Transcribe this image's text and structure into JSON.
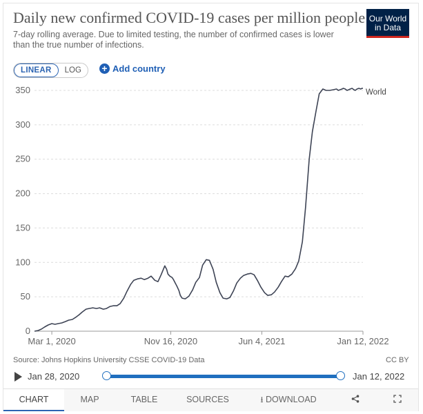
{
  "header": {
    "title": "Daily new confirmed COVID-19 cases per million people",
    "subtitle": "7-day rolling average. Due to limited testing, the number of confirmed cases is lower than the true number of infections.",
    "logo_line1": "Our World",
    "logo_line2": "in Data"
  },
  "controls": {
    "linear_label": "LINEAR",
    "log_label": "LOG",
    "add_country_label": "Add country"
  },
  "chart_data": {
    "type": "line",
    "title": "Daily new confirmed COVID-19 cases per million people",
    "xlabel": "",
    "ylabel": "",
    "ylim": [
      0,
      350
    ],
    "y_ticks": [
      0,
      50,
      100,
      150,
      200,
      250,
      300,
      350
    ],
    "y_tick_labels": [
      "0",
      "50",
      "100",
      "150",
      "200",
      "250",
      "300",
      "350"
    ],
    "x_tick_labels": [
      "Mar 1, 2020",
      "Nov 16, 2020",
      "Jun 4, 2021",
      "Jan 12, 2022"
    ],
    "x_tick_days": [
      38,
      299,
      499,
      721
    ],
    "x_range_days": [
      0,
      721
    ],
    "grid": "horizontal-dashed",
    "series": [
      {
        "name": "World",
        "color": "#3d4354",
        "x_days": [
          0,
          8,
          15,
          22,
          30,
          38,
          45,
          52,
          60,
          68,
          75,
          83,
          90,
          98,
          105,
          113,
          120,
          128,
          136,
          143,
          151,
          158,
          166,
          173,
          181,
          188,
          196,
          203,
          211,
          218,
          226,
          234,
          241,
          249,
          256,
          264,
          271,
          278,
          286,
          290,
          293,
          297,
          302,
          305,
          309,
          313,
          317,
          320,
          324,
          331,
          339,
          347,
          354,
          362,
          369,
          377,
          384,
          392,
          399,
          407,
          414,
          422,
          429,
          437,
          444,
          452,
          459,
          467,
          475,
          482,
          490,
          497,
          505,
          512,
          520,
          527,
          535,
          542,
          550,
          557,
          565,
          573,
          580,
          588,
          595,
          603,
          610,
          618,
          625,
          633,
          640,
          648,
          656,
          663,
          667,
          671,
          675,
          678,
          682,
          686,
          690,
          693,
          697,
          701,
          704,
          708,
          712,
          716,
          719,
          721
        ],
        "values": [
          0,
          1,
          3,
          6,
          9,
          11,
          10,
          11,
          12,
          14,
          16,
          17,
          20,
          24,
          28,
          32,
          33,
          34,
          33,
          34,
          32,
          33,
          36,
          37,
          37,
          40,
          48,
          58,
          68,
          74,
          76,
          77,
          75,
          77,
          80,
          74,
          72,
          82,
          95,
          90,
          83,
          80,
          78,
          75,
          70,
          65,
          59,
          52,
          48,
          47,
          51,
          60,
          71,
          78,
          96,
          104,
          103,
          90,
          71,
          56,
          48,
          47,
          49,
          59,
          70,
          77,
          81,
          83,
          84,
          82,
          73,
          64,
          56,
          52,
          53,
          57,
          64,
          72,
          80,
          79,
          83,
          91,
          102,
          130,
          180,
          250,
          290,
          320,
          345,
          352,
          350,
          350,
          351,
          352,
          350,
          351,
          352,
          353,
          352,
          350,
          351,
          352,
          353,
          351,
          350,
          352,
          353,
          352,
          353,
          353
        ]
      }
    ],
    "series_label": "World"
  },
  "footer": {
    "source": "Source: Johns Hopkins University CSSE COVID-19 Data",
    "license": "CC BY",
    "timeline_start": "Jan 28, 2020",
    "timeline_end": "Jan 12, 2022"
  },
  "tabs": [
    {
      "label": "CHART"
    },
    {
      "label": "MAP"
    },
    {
      "label": "TABLE"
    },
    {
      "label": "SOURCES"
    },
    {
      "label": "DOWNLOAD"
    }
  ],
  "icons": {
    "download": "download-icon",
    "share": "share-icon",
    "fullscreen": "fullscreen-icon",
    "play": "play-icon",
    "plus": "plus-icon"
  },
  "colors": {
    "accent": "#2c64b2",
    "line": "#3d4354",
    "logo_bg": "#002147",
    "logo_stripe": "#ce261e"
  }
}
